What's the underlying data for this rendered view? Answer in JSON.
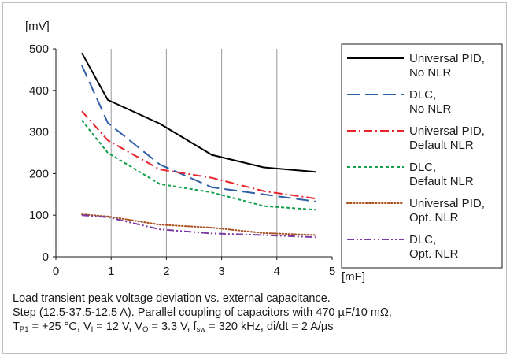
{
  "chart_data": {
    "type": "line",
    "ylabel": "[mV]",
    "xlabel": "[mF]",
    "xlim": [
      0,
      5
    ],
    "ylim": [
      0,
      500
    ],
    "x_ticks": [
      "0",
      "1",
      "2",
      "3",
      "4",
      "5"
    ],
    "y_ticks": [
      "0",
      "100",
      "200",
      "300",
      "400",
      "500"
    ],
    "grid": "vertical",
    "legend_position": "right",
    "series": [
      {
        "name_lines": [
          "Universal PID,",
          "No NLR"
        ],
        "color": "#000000",
        "dash": "solid",
        "x": [
          0.47,
          0.94,
          1.88,
          2.82,
          3.76,
          4.7
        ],
        "y": [
          490,
          377,
          320,
          245,
          215,
          204
        ]
      },
      {
        "name_lines": [
          "DLC,",
          "No NLR"
        ],
        "color": "#2e5fa8",
        "dash": "long-dash",
        "x": [
          0.47,
          0.94,
          1.88,
          2.82,
          3.76,
          4.7
        ],
        "y": [
          460,
          322,
          222,
          167,
          150,
          133
        ]
      },
      {
        "name_lines": [
          "Universal PID,",
          "Default NLR"
        ],
        "color": "#e8242c",
        "dash": "dash-dot",
        "x": [
          0.47,
          0.94,
          1.88,
          2.82,
          3.76,
          4.7
        ],
        "y": [
          350,
          280,
          210,
          190,
          158,
          140
        ]
      },
      {
        "name_lines": [
          "DLC,",
          "Default NLR"
        ],
        "color": "#13a04c",
        "dash": "short-dash",
        "x": [
          0.47,
          0.94,
          1.88,
          2.82,
          3.76,
          4.7
        ],
        "y": [
          328,
          250,
          175,
          155,
          122,
          113
        ]
      },
      {
        "name_lines": [
          "Universal PID,",
          "Opt. NLR"
        ],
        "color": "#a8501e",
        "dash": "dotted",
        "x": [
          0.47,
          0.94,
          1.88,
          2.82,
          3.76,
          4.7
        ],
        "y": [
          102,
          97,
          77,
          70,
          57,
          52
        ]
      },
      {
        "name_lines": [
          "DLC,",
          "Opt. NLR"
        ],
        "color": "#7b3aa3",
        "dash": "dash-dot-dot",
        "x": [
          0.47,
          0.94,
          1.88,
          2.82,
          3.76,
          4.7
        ],
        "y": [
          100,
          95,
          66,
          56,
          52,
          47
        ]
      }
    ]
  },
  "caption": {
    "line1": "Load transient peak voltage deviation vs. external capacitance.",
    "line2": "Step (12.5-37.5-12.5 A). Parallel coupling of capacitors with 470 µF/10 mΩ,",
    "line3_parts": [
      {
        "t": "T"
      },
      {
        "sub": "P1"
      },
      {
        "t": " = +25 °C, V"
      },
      {
        "sub": "I"
      },
      {
        "t": " = 12 V, V"
      },
      {
        "sub": "O"
      },
      {
        "t": " = 3.3 V, f"
      },
      {
        "sub": "sw"
      },
      {
        "t": " = 320 kHz, di/dt = 2 A/µs"
      }
    ]
  }
}
